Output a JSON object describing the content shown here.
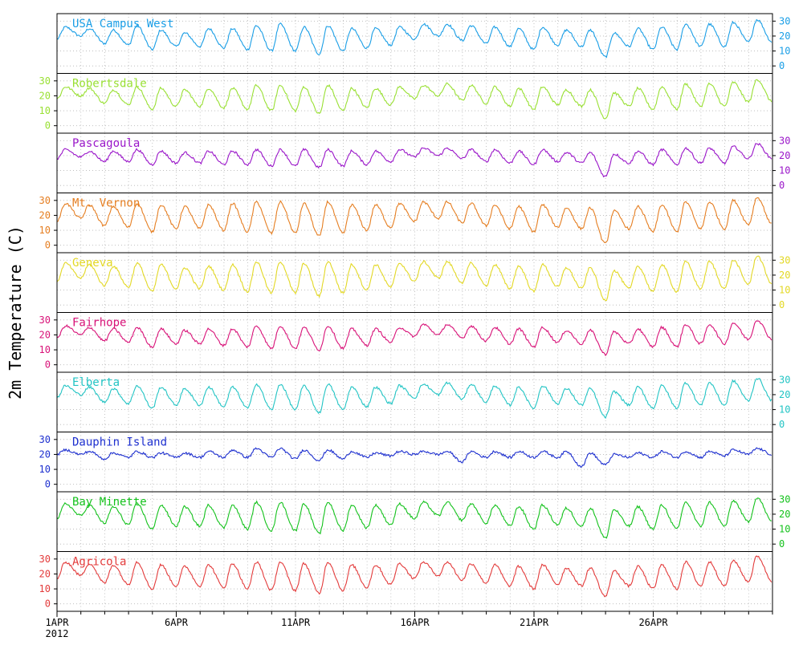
{
  "chart_data": {
    "type": "line",
    "ylabel": "2m Temperature (C)",
    "xlim": [
      "2012-04-01",
      "2012-04-31"
    ],
    "x_tick_labels": [
      "1APR",
      "6APR",
      "11APR",
      "16APR",
      "21APR",
      "26APR"
    ],
    "x_tick_days": [
      1,
      6,
      11,
      16,
      21,
      26
    ],
    "x_year_label": "2012",
    "ylim": [
      -5,
      35
    ],
    "y_ticks": [
      0,
      10,
      20,
      30
    ],
    "grid": true,
    "legend": "inside each panel, top-left",
    "series": [
      {
        "name": "USA Campus West",
        "color": "#1a9ee6",
        "axis_side": "right",
        "day_max": [
          26,
          25,
          24,
          27,
          24,
          22,
          25,
          25,
          27,
          28,
          26,
          27,
          25,
          25,
          26,
          28,
          28,
          27,
          26,
          25,
          26,
          24,
          24,
          22,
          25,
          26,
          28,
          28,
          29,
          31
        ],
        "day_min": [
          18,
          20,
          15,
          14,
          11,
          13,
          13,
          12,
          11,
          10,
          10,
          8,
          10,
          12,
          14,
          18,
          20,
          17,
          15,
          13,
          11,
          14,
          13,
          6,
          13,
          11,
          11,
          13,
          13,
          16
        ]
      },
      {
        "name": "Robertsdale",
        "color": "#99e033",
        "axis_side": "left",
        "day_max": [
          26,
          25,
          24,
          26,
          25,
          24,
          25,
          25,
          27,
          27,
          26,
          27,
          25,
          25,
          26,
          27,
          28,
          27,
          26,
          25,
          26,
          24,
          24,
          22,
          25,
          26,
          28,
          28,
          29,
          31
        ],
        "day_min": [
          18,
          20,
          15,
          14,
          11,
          13,
          13,
          12,
          11,
          10,
          10,
          8,
          10,
          12,
          14,
          18,
          20,
          17,
          15,
          13,
          11,
          14,
          13,
          5,
          13,
          11,
          11,
          13,
          13,
          16
        ]
      },
      {
        "name": "Pascagoula",
        "color": "#9a16c9",
        "axis_side": "right",
        "day_max": [
          24,
          23,
          23,
          24,
          23,
          22,
          23,
          23,
          24,
          24,
          24,
          24,
          23,
          23,
          24,
          25,
          25,
          24,
          24,
          23,
          24,
          22,
          22,
          21,
          23,
          24,
          25,
          25,
          26,
          28
        ],
        "day_min": [
          18,
          19,
          16,
          16,
          14,
          15,
          15,
          14,
          14,
          13,
          13,
          12,
          13,
          14,
          16,
          19,
          20,
          18,
          16,
          15,
          14,
          16,
          15,
          6,
          15,
          14,
          14,
          15,
          15,
          18
        ]
      },
      {
        "name": "Mt. Vernon",
        "color": "#e57e21",
        "axis_side": "left",
        "day_max": [
          28,
          27,
          26,
          28,
          27,
          26,
          27,
          28,
          29,
          29,
          28,
          29,
          27,
          27,
          28,
          29,
          29,
          28,
          27,
          26,
          27,
          25,
          25,
          23,
          26,
          27,
          29,
          29,
          30,
          32
        ],
        "day_min": [
          16,
          18,
          13,
          12,
          9,
          11,
          11,
          10,
          9,
          8,
          8,
          6,
          8,
          10,
          12,
          16,
          18,
          15,
          13,
          11,
          9,
          12,
          11,
          1,
          11,
          9,
          9,
          11,
          11,
          14
        ]
      },
      {
        "name": "Geneva",
        "color": "#e3d825",
        "axis_side": "right",
        "day_max": [
          28,
          27,
          26,
          28,
          27,
          25,
          26,
          27,
          29,
          29,
          28,
          29,
          27,
          27,
          28,
          29,
          29,
          28,
          27,
          26,
          27,
          25,
          25,
          23,
          26,
          27,
          29,
          29,
          30,
          33
        ],
        "day_min": [
          16,
          18,
          13,
          12,
          9,
          11,
          11,
          10,
          9,
          8,
          8,
          6,
          8,
          10,
          12,
          16,
          18,
          15,
          13,
          11,
          9,
          12,
          11,
          3,
          11,
          9,
          9,
          11,
          11,
          14
        ]
      },
      {
        "name": "Fairhope",
        "color": "#d81278",
        "axis_side": "left",
        "day_max": [
          26,
          25,
          24,
          25,
          24,
          23,
          24,
          24,
          26,
          26,
          25,
          26,
          24,
          24,
          25,
          27,
          27,
          26,
          25,
          24,
          25,
          23,
          23,
          22,
          24,
          25,
          27,
          27,
          28,
          30
        ],
        "day_min": [
          18,
          20,
          16,
          15,
          12,
          14,
          14,
          13,
          12,
          11,
          11,
          10,
          11,
          13,
          15,
          19,
          20,
          18,
          16,
          14,
          12,
          15,
          14,
          7,
          14,
          12,
          12,
          14,
          14,
          17
        ]
      },
      {
        "name": "Elberta",
        "color": "#22c4c4",
        "axis_side": "right",
        "day_max": [
          26,
          25,
          24,
          26,
          25,
          24,
          25,
          25,
          27,
          27,
          26,
          27,
          25,
          25,
          26,
          27,
          28,
          27,
          26,
          25,
          26,
          24,
          24,
          22,
          25,
          26,
          28,
          28,
          29,
          31
        ],
        "day_min": [
          18,
          20,
          15,
          14,
          11,
          13,
          13,
          12,
          11,
          10,
          10,
          8,
          10,
          12,
          14,
          18,
          20,
          17,
          15,
          13,
          11,
          14,
          13,
          5,
          13,
          11,
          11,
          13,
          13,
          16
        ]
      },
      {
        "name": "Dauphin Island",
        "color": "#1d2fcf",
        "axis_side": "left",
        "day_max": [
          23,
          22,
          21,
          22,
          21,
          21,
          22,
          23,
          24,
          24,
          23,
          23,
          22,
          21,
          22,
          22,
          22,
          22,
          22,
          22,
          22,
          22,
          21,
          20,
          21,
          22,
          22,
          22,
          23,
          24
        ],
        "day_min": [
          20,
          20,
          17,
          18,
          18,
          18,
          18,
          18,
          18,
          18,
          17,
          16,
          17,
          18,
          19,
          20,
          20,
          15,
          18,
          18,
          18,
          18,
          12,
          13,
          18,
          18,
          18,
          18,
          19,
          20
        ]
      },
      {
        "name": "Bay Minette",
        "color": "#14c21c",
        "axis_side": "right",
        "day_max": [
          27,
          26,
          25,
          27,
          26,
          25,
          26,
          26,
          28,
          28,
          27,
          28,
          26,
          26,
          27,
          28,
          28,
          27,
          26,
          25,
          26,
          24,
          24,
          23,
          25,
          26,
          28,
          28,
          29,
          31
        ],
        "day_min": [
          17,
          19,
          14,
          13,
          10,
          12,
          12,
          11,
          10,
          9,
          9,
          7,
          9,
          11,
          13,
          17,
          19,
          16,
          14,
          12,
          10,
          13,
          12,
          4,
          12,
          10,
          10,
          12,
          12,
          15
        ]
      },
      {
        "name": "Agricola",
        "color": "#e33b3b",
        "axis_side": "left",
        "day_max": [
          28,
          27,
          26,
          28,
          26,
          25,
          26,
          27,
          28,
          28,
          27,
          28,
          26,
          26,
          27,
          28,
          28,
          27,
          26,
          25,
          26,
          24,
          24,
          22,
          25,
          26,
          28,
          28,
          29,
          32
        ],
        "day_min": [
          17,
          19,
          14,
          13,
          10,
          12,
          12,
          11,
          10,
          9,
          9,
          7,
          9,
          11,
          13,
          17,
          19,
          16,
          14,
          12,
          10,
          13,
          12,
          5,
          12,
          10,
          10,
          12,
          12,
          15
        ]
      }
    ]
  }
}
